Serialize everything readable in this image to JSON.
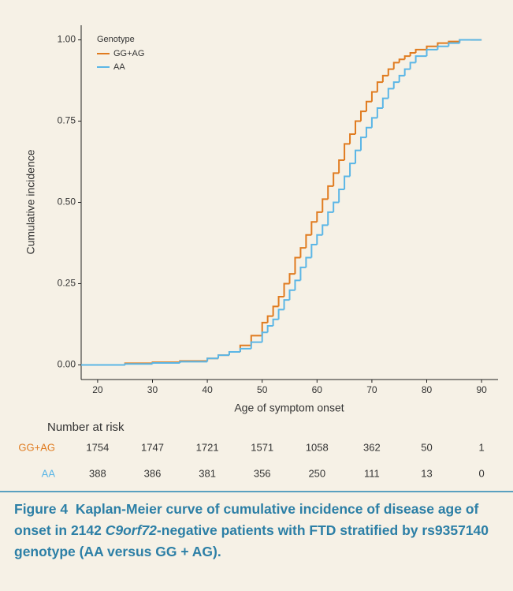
{
  "chart_data": {
    "type": "step",
    "xlabel": "Age of symptom onset",
    "ylabel": "Cumulative incidence",
    "x": [
      17,
      20,
      25,
      30,
      35,
      40,
      42,
      44,
      46,
      48,
      50,
      51,
      52,
      53,
      54,
      55,
      56,
      57,
      58,
      59,
      60,
      61,
      62,
      63,
      64,
      65,
      66,
      67,
      68,
      69,
      70,
      71,
      72,
      73,
      74,
      75,
      76,
      77,
      78,
      80,
      82,
      84,
      86,
      88,
      90
    ],
    "series": [
      {
        "name": "GG+AG",
        "color": "#e07b1f",
        "values": [
          0,
          0,
          0.005,
          0.008,
          0.012,
          0.02,
          0.03,
          0.04,
          0.06,
          0.09,
          0.13,
          0.15,
          0.18,
          0.21,
          0.25,
          0.28,
          0.33,
          0.36,
          0.4,
          0.44,
          0.47,
          0.51,
          0.55,
          0.59,
          0.63,
          0.68,
          0.71,
          0.75,
          0.78,
          0.81,
          0.84,
          0.87,
          0.89,
          0.91,
          0.93,
          0.94,
          0.95,
          0.96,
          0.97,
          0.98,
          0.99,
          0.995,
          1,
          1,
          1
        ]
      },
      {
        "name": "AA",
        "color": "#5bb6e6",
        "values": [
          0,
          0,
          0.003,
          0.006,
          0.01,
          0.02,
          0.03,
          0.04,
          0.05,
          0.07,
          0.1,
          0.12,
          0.14,
          0.17,
          0.2,
          0.23,
          0.26,
          0.3,
          0.33,
          0.37,
          0.4,
          0.43,
          0.47,
          0.5,
          0.54,
          0.58,
          0.62,
          0.66,
          0.7,
          0.73,
          0.76,
          0.79,
          0.82,
          0.85,
          0.87,
          0.89,
          0.91,
          0.93,
          0.95,
          0.97,
          0.98,
          0.99,
          1,
          1,
          1
        ]
      }
    ],
    "legend_title": "Genotype",
    "legend": "top-left",
    "xlim": [
      17,
      93
    ],
    "ylim": [
      -0.045,
      1.045
    ],
    "xticks": [
      20,
      30,
      40,
      50,
      60,
      70,
      80,
      90
    ],
    "yticks": [
      {
        "value": 0,
        "label": "0.00"
      },
      {
        "value": 0.25,
        "label": "0.25"
      },
      {
        "value": 0.5,
        "label": "0.50"
      },
      {
        "value": 0.75,
        "label": "0.75"
      },
      {
        "value": 1,
        "label": "1.00"
      }
    ],
    "risk_table": {
      "title": "Number at risk",
      "rows": [
        [
          1754,
          1747,
          1721,
          1571,
          1058,
          362,
          50,
          1
        ],
        [
          388,
          386,
          381,
          356,
          250,
          111,
          13,
          0
        ]
      ]
    }
  },
  "caption": {
    "label": "Figure 4",
    "parts": [
      "Kaplan-Meier curve of cumulative incidence of disease age of onset in 2142 ",
      "C9orf72",
      "-negative patients with FTD stratified by rs9357140 genotype (AA versus GG + AG)."
    ]
  }
}
